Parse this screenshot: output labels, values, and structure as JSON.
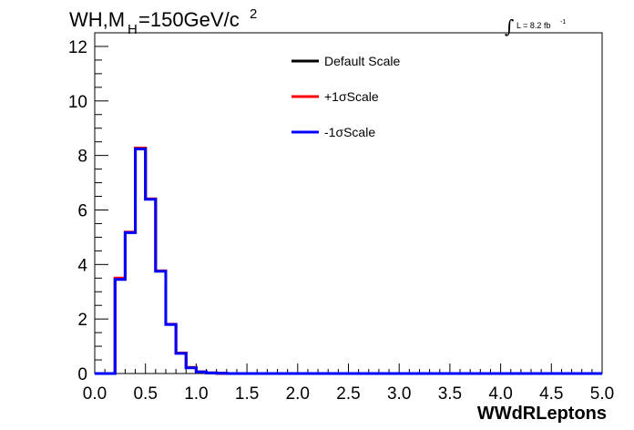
{
  "header": {
    "title_main": "WH,M",
    "title_sub": "H",
    "title_rest": "=150GeV/c",
    "title_sup": "2",
    "lumi_integral": "∫",
    "lumi_text": "L = 8.2 fb",
    "lumi_sup": "-1"
  },
  "colors": {
    "default": "#000000",
    "plus": "#ff0000",
    "minus": "#0000ff"
  },
  "chart_data": {
    "type": "line",
    "step": true,
    "title": "WH,MH=150GeV/c2",
    "xlabel": "WWdRLeptons",
    "ylabel": "",
    "xlim": [
      0,
      5
    ],
    "ylim": [
      0,
      12.5
    ],
    "xticks": [
      "0.0",
      "0.5",
      "1.0",
      "1.5",
      "2.0",
      "2.5",
      "3.0",
      "3.5",
      "4.0",
      "4.5",
      "5.0"
    ],
    "yticks": [
      "0",
      "2",
      "4",
      "6",
      "8",
      "10",
      "12"
    ],
    "grid": false,
    "legend_position": "top-center",
    "bin_edges": [
      0.0,
      0.1,
      0.2,
      0.3,
      0.4,
      0.5,
      0.6,
      0.7,
      0.8,
      0.9,
      1.0,
      1.1,
      1.2,
      1.3,
      1.4,
      1.5,
      1.6,
      1.7,
      1.8,
      1.9,
      2.0,
      2.1,
      2.2,
      2.3,
      2.4,
      2.5,
      2.6,
      2.7,
      2.8,
      2.9,
      3.0,
      3.1,
      3.2,
      3.3,
      3.4,
      3.5,
      3.6,
      3.7,
      3.8,
      3.9,
      4.0,
      4.1,
      4.2,
      4.3,
      4.4,
      4.5,
      4.6,
      4.7,
      4.8,
      4.9,
      5.0
    ],
    "series": [
      {
        "name": "Default Scale",
        "color": "#000000",
        "values": [
          0,
          0,
          3.48,
          5.18,
          8.25,
          6.4,
          3.76,
          1.8,
          0.75,
          0.22,
          0.06,
          0.02,
          0.01,
          0,
          0,
          0,
          0,
          0,
          0,
          0,
          0,
          0,
          0,
          0,
          0,
          0,
          0,
          0,
          0,
          0,
          0,
          0,
          0,
          0,
          0,
          0,
          0,
          0,
          0,
          0,
          0,
          0,
          0,
          0,
          0,
          0,
          0,
          0,
          0,
          0
        ]
      },
      {
        "name": "+1σScale",
        "color": "#ff0000",
        "values": [
          0,
          0,
          3.5,
          5.19,
          8.27,
          6.41,
          3.77,
          1.81,
          0.75,
          0.22,
          0.06,
          0.02,
          0.01,
          0,
          0,
          0,
          0,
          0,
          0,
          0,
          0,
          0,
          0,
          0,
          0,
          0,
          0,
          0,
          0,
          0,
          0,
          0,
          0,
          0,
          0,
          0,
          0,
          0,
          0,
          0,
          0,
          0,
          0,
          0,
          0,
          0,
          0,
          0,
          0,
          0
        ]
      },
      {
        "name": "-1σScale",
        "color": "#0000ff",
        "values": [
          0,
          0,
          3.45,
          5.17,
          8.24,
          6.39,
          3.75,
          1.8,
          0.74,
          0.21,
          0.06,
          0.02,
          0.01,
          0,
          0,
          0,
          0,
          0,
          0,
          0,
          0,
          0,
          0,
          0,
          0,
          0,
          0,
          0,
          0,
          0,
          0,
          0,
          0,
          0,
          0,
          0,
          0,
          0,
          0,
          0,
          0,
          0,
          0,
          0,
          0,
          0,
          0,
          0,
          0,
          0
        ]
      }
    ]
  }
}
